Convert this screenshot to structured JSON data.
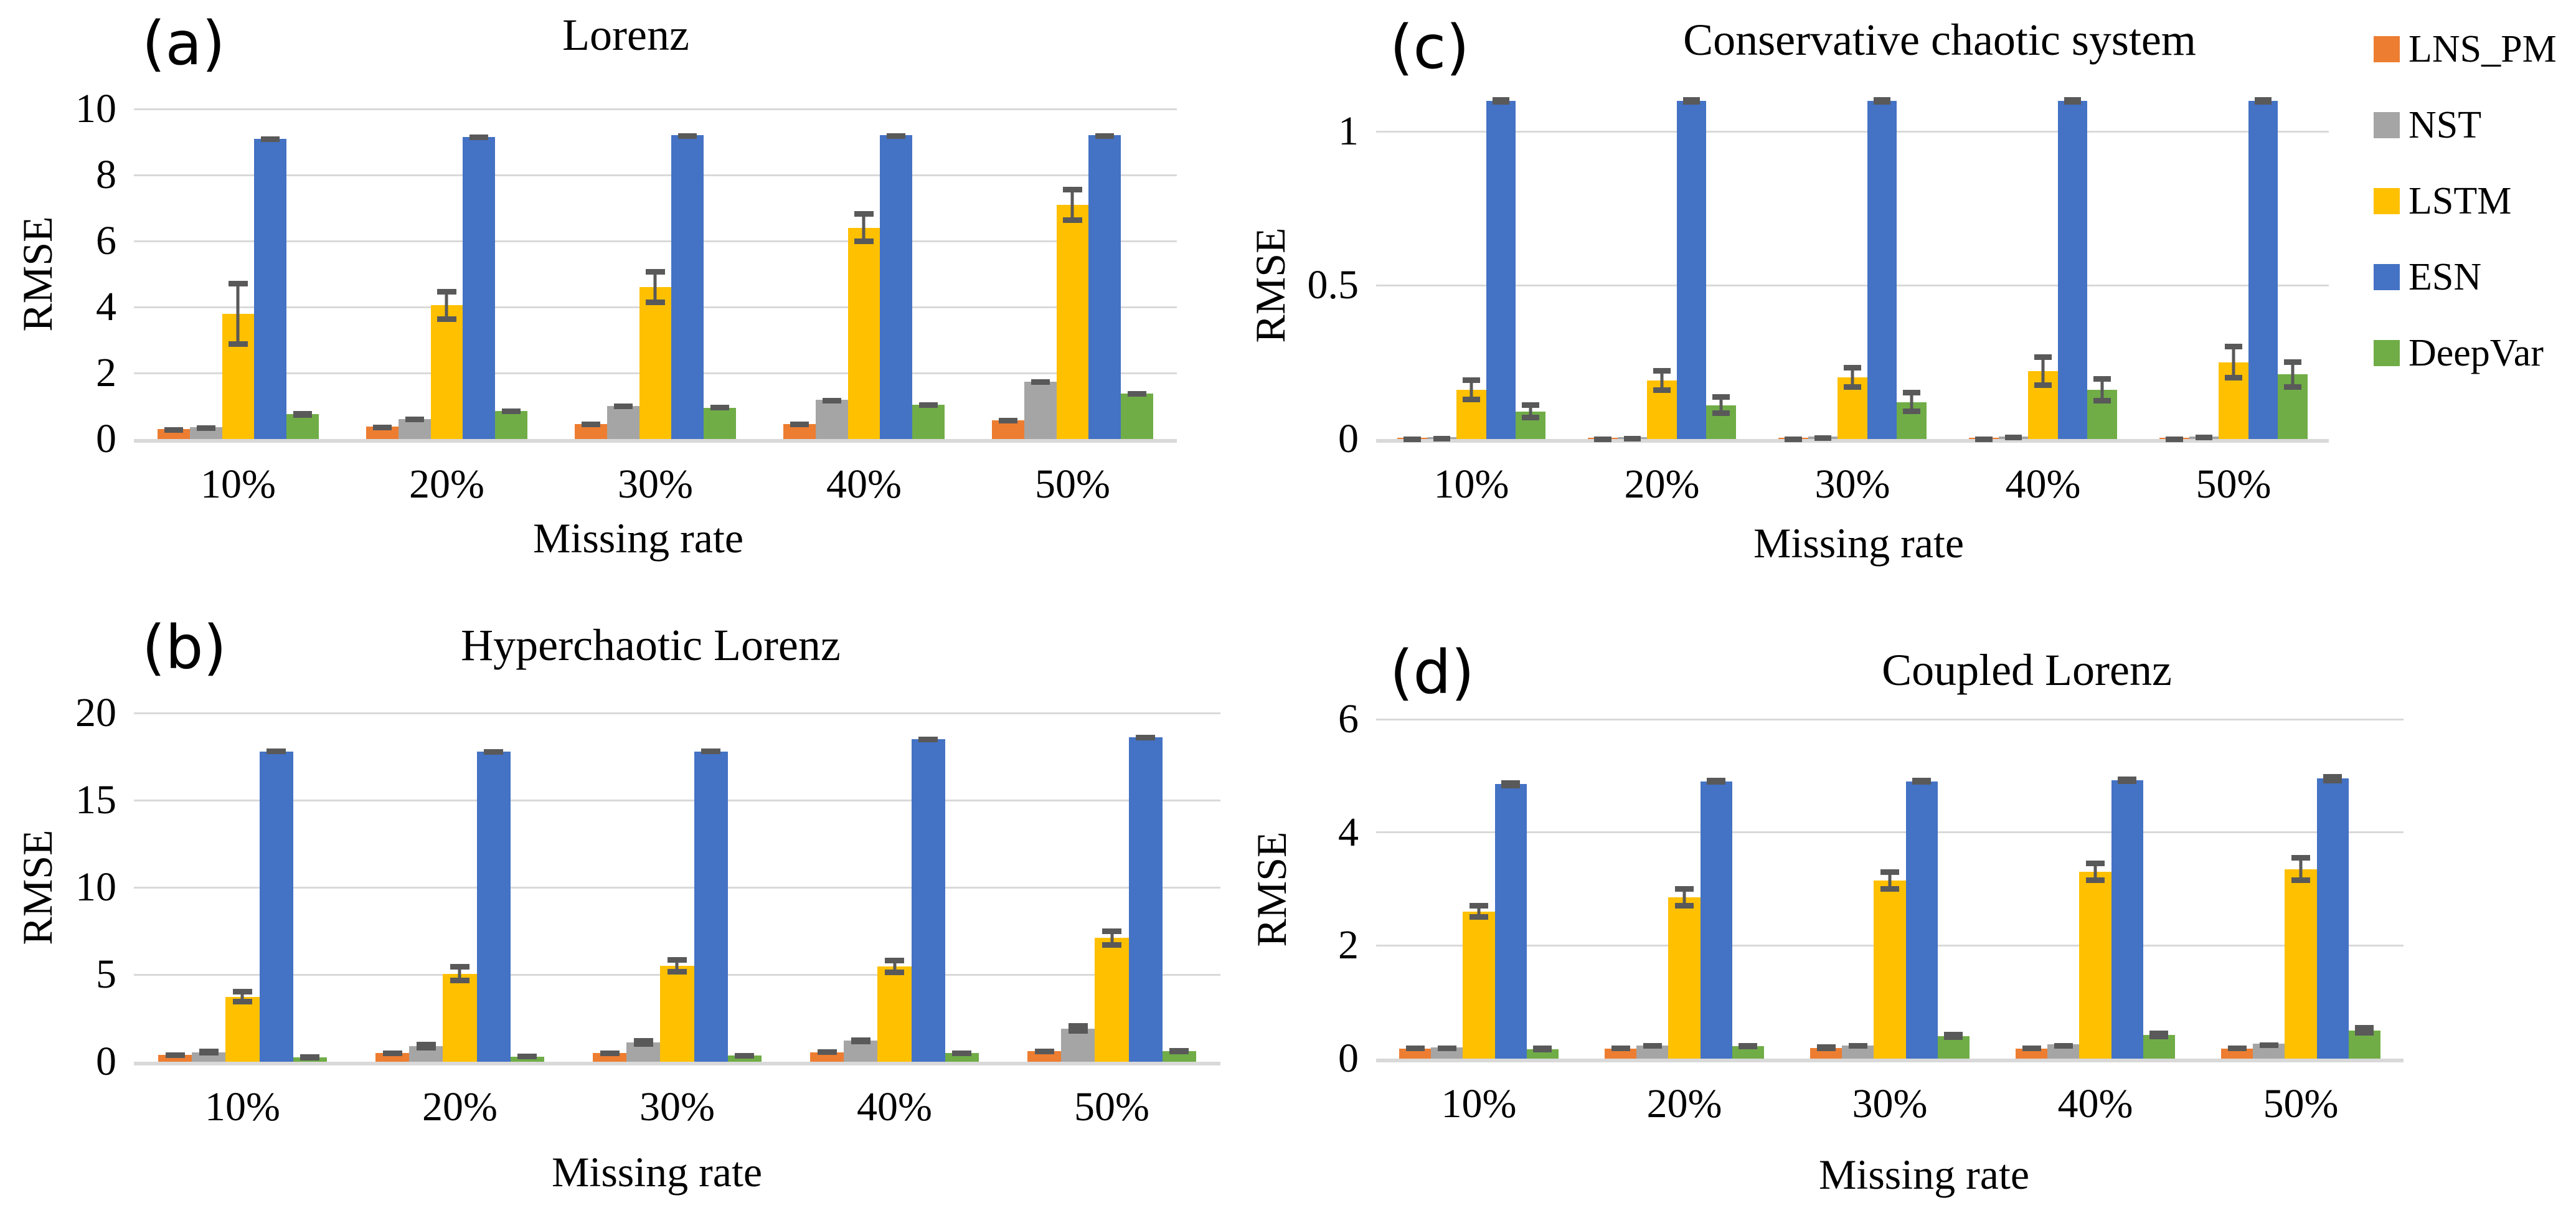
{
  "figure": {
    "x_axis_title": "Missing rate",
    "y_axis_title": "RMSE"
  },
  "colors": {
    "LNS_PM": "#ED7D31",
    "NST": "#A5A5A5",
    "LSTM": "#FFC000",
    "ESN": "#4472C4",
    "DeepVar": "#70AD47",
    "error_bar": "#595959",
    "gridline": "#D9D9D9"
  },
  "legend": {
    "items": [
      {
        "label": "LNS_PM",
        "color": "#ED7D31"
      },
      {
        "label": "NST",
        "color": "#A5A5A5"
      },
      {
        "label": "LSTM",
        "color": "#FFC000"
      },
      {
        "label": "ESN",
        "color": "#4472C4"
      },
      {
        "label": "DeepVar",
        "color": "#70AD47"
      }
    ]
  },
  "chart_data": [
    {
      "id": "a",
      "type": "bar",
      "panel_label": "(a)",
      "title": "Lorenz",
      "xlabel": "Missing rate",
      "ylabel": "RMSE",
      "categories": [
        "10%",
        "20%",
        "30%",
        "40%",
        "50%"
      ],
      "ylim": [
        0,
        10
      ],
      "grid": true,
      "legend_position": "outside-right",
      "yticks": [
        {
          "label": "10",
          "value": 10
        },
        {
          "label": "8",
          "value": 8
        },
        {
          "label": "6",
          "value": 6
        },
        {
          "label": "4",
          "value": 4
        },
        {
          "label": "2",
          "value": 2
        },
        {
          "label": "0",
          "value": 0
        }
      ],
      "series": [
        {
          "name": "LNS_PM",
          "color": "#ED7D31",
          "values": [
            0.3,
            0.38,
            0.45,
            0.45,
            0.56
          ],
          "errors": [
            0.06,
            0.06,
            0.07,
            0.07,
            0.08
          ]
        },
        {
          "name": "NST",
          "color": "#A5A5A5",
          "values": [
            0.35,
            0.6,
            1.0,
            1.19,
            1.74
          ],
          "errors": [
            0.06,
            0.07,
            0.07,
            0.06,
            0.07
          ]
        },
        {
          "name": "LSTM",
          "color": "#FFC000",
          "values": [
            3.8,
            4.05,
            4.6,
            6.4,
            7.1
          ],
          "errors": [
            1.0,
            0.5,
            0.55,
            0.5,
            0.55
          ]
        },
        {
          "name": "ESN",
          "color": "#4472C4",
          "values": [
            9.1,
            9.15,
            9.2,
            9.2,
            9.2
          ],
          "errors": [
            0.07,
            0.07,
            0.07,
            0.07,
            0.07
          ]
        },
        {
          "name": "DeepVar",
          "color": "#70AD47",
          "values": [
            0.75,
            0.85,
            0.95,
            1.04,
            1.38
          ],
          "errors": [
            0.1,
            0.08,
            0.08,
            0.07,
            0.08
          ]
        }
      ]
    },
    {
      "id": "b",
      "type": "bar",
      "panel_label": "(b)",
      "title": "Hyperchaotic Lorenz",
      "xlabel": "Missing rate",
      "ylabel": "RMSE",
      "categories": [
        "10%",
        "20%",
        "30%",
        "40%",
        "50%"
      ],
      "ylim": [
        0,
        20
      ],
      "grid": true,
      "yticks": [
        {
          "label": "20",
          "value": 20
        },
        {
          "label": "15",
          "value": 15
        },
        {
          "label": "10",
          "value": 10
        },
        {
          "label": "5",
          "value": 5
        },
        {
          "label": "0",
          "value": 0
        }
      ],
      "series": [
        {
          "name": "LNS_PM",
          "color": "#ED7D31",
          "values": [
            0.4,
            0.5,
            0.5,
            0.55,
            0.6
          ],
          "errors": [
            0.15,
            0.15,
            0.15,
            0.15,
            0.15
          ]
        },
        {
          "name": "NST",
          "color": "#A5A5A5",
          "values": [
            0.55,
            0.9,
            1.1,
            1.2,
            1.9
          ],
          "errors": [
            0.2,
            0.25,
            0.25,
            0.2,
            0.3
          ]
        },
        {
          "name": "LSTM",
          "color": "#FFC000",
          "values": [
            3.72,
            5.05,
            5.5,
            5.45,
            7.1
          ],
          "errors": [
            0.45,
            0.55,
            0.5,
            0.5,
            0.55
          ]
        },
        {
          "name": "ESN",
          "color": "#4472C4",
          "values": [
            17.8,
            17.8,
            17.8,
            18.5,
            18.6
          ],
          "errors": [
            0.15,
            0.12,
            0.15,
            0.15,
            0.15
          ]
        },
        {
          "name": "DeepVar",
          "color": "#70AD47",
          "values": [
            0.25,
            0.3,
            0.35,
            0.5,
            0.6
          ],
          "errors": [
            0.18,
            0.15,
            0.15,
            0.15,
            0.18
          ]
        }
      ]
    },
    {
      "id": "c",
      "type": "bar",
      "panel_label": "(c)",
      "title": "Conservative chaotic system",
      "xlabel": "Missing rate",
      "ylabel": "RMSE",
      "categories": [
        "10%",
        "20%",
        "30%",
        "40%",
        "50%"
      ],
      "ylim": [
        0,
        1
      ],
      "grid": true,
      "yticks": [
        {
          "label": "1",
          "value": 1
        },
        {
          "label": "0.5",
          "value": 0.5
        },
        {
          "label": "0",
          "value": 0
        }
      ],
      "series": [
        {
          "name": "LNS_PM",
          "color": "#ED7D31",
          "values": [
            0.004,
            0.004,
            0.005,
            0.005,
            0.005
          ],
          "errors": [
            0.004,
            0.004,
            0.004,
            0.004,
            0.004
          ]
        },
        {
          "name": "NST",
          "color": "#A5A5A5",
          "values": [
            0.006,
            0.006,
            0.008,
            0.009,
            0.009
          ],
          "errors": [
            0.005,
            0.005,
            0.005,
            0.005,
            0.005
          ]
        },
        {
          "name": "LSTM",
          "color": "#FFC000",
          "values": [
            0.16,
            0.19,
            0.2,
            0.22,
            0.25
          ],
          "errors": [
            0.04,
            0.04,
            0.04,
            0.055,
            0.06
          ]
        },
        {
          "name": "ESN",
          "color": "#4472C4",
          "values": [
            1.1,
            1.1,
            1.1,
            1.1,
            1.1
          ],
          "errors": [
            0.012,
            0.012,
            0.012,
            0.012,
            0.012
          ]
        },
        {
          "name": "DeepVar",
          "color": "#70AD47",
          "values": [
            0.09,
            0.11,
            0.12,
            0.16,
            0.21
          ],
          "errors": [
            0.03,
            0.035,
            0.04,
            0.045,
            0.05
          ]
        }
      ]
    },
    {
      "id": "d",
      "type": "bar",
      "panel_label": "(d)",
      "title": "Coupled Lorenz",
      "xlabel": "Missing rate",
      "ylabel": "RMSE",
      "categories": [
        "10%",
        "20%",
        "30%",
        "40%",
        "50%"
      ],
      "ylim": [
        0,
        6
      ],
      "grid": true,
      "yticks": [
        {
          "label": "6",
          "value": 6
        },
        {
          "label": "4",
          "value": 4
        },
        {
          "label": "2",
          "value": 2
        },
        {
          "label": "0",
          "value": 0
        }
      ],
      "series": [
        {
          "name": "LNS_PM",
          "color": "#ED7D31",
          "values": [
            0.18,
            0.18,
            0.19,
            0.18,
            0.18
          ],
          "errors": [
            0.05,
            0.05,
            0.06,
            0.05,
            0.05
          ]
        },
        {
          "name": "NST",
          "color": "#A5A5A5",
          "values": [
            0.2,
            0.23,
            0.23,
            0.25,
            0.26
          ],
          "errors": [
            0.03,
            0.04,
            0.04,
            0.03,
            0.03
          ]
        },
        {
          "name": "LSTM",
          "color": "#FFC000",
          "values": [
            2.6,
            2.85,
            3.15,
            3.3,
            3.35
          ],
          "errors": [
            0.15,
            0.2,
            0.2,
            0.2,
            0.25
          ]
        },
        {
          "name": "ESN",
          "color": "#4472C4",
          "values": [
            4.85,
            4.9,
            4.9,
            4.92,
            4.95
          ],
          "errors": [
            0.07,
            0.06,
            0.06,
            0.07,
            0.08
          ]
        },
        {
          "name": "DeepVar",
          "color": "#70AD47",
          "values": [
            0.17,
            0.22,
            0.4,
            0.42,
            0.5
          ],
          "errors": [
            0.06,
            0.06,
            0.07,
            0.08,
            0.09
          ]
        }
      ]
    }
  ]
}
